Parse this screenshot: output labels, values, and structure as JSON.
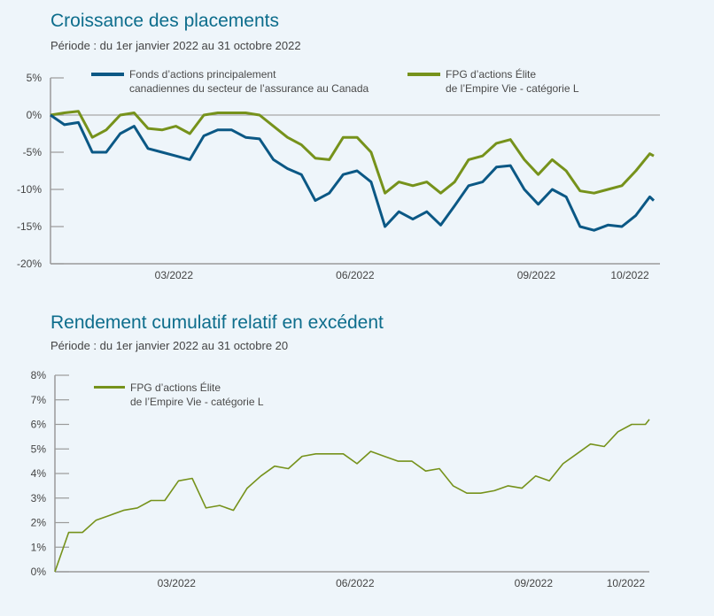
{
  "chart_data": [
    {
      "type": "line",
      "title": "Croissance des placements",
      "subtitle": "Période : du 1er janvier 2022 au 31 octobre 2022",
      "xlabel": "",
      "ylabel": "",
      "ylim": [
        -20,
        5
      ],
      "yticks": [
        "5%",
        "0%",
        "-5%",
        "-10%",
        "-15%",
        "-20%"
      ],
      "xtick_labels": [
        "03/2022",
        "06/2022",
        "09/2022",
        "10/2022"
      ],
      "legend": "top",
      "grid": false,
      "x": [
        "2022-01-01",
        "2022-01-08",
        "2022-01-15",
        "2022-01-22",
        "2022-01-29",
        "2022-02-05",
        "2022-02-12",
        "2022-02-19",
        "2022-02-26",
        "2022-03-05",
        "2022-03-12",
        "2022-03-19",
        "2022-03-26",
        "2022-04-02",
        "2022-04-09",
        "2022-04-16",
        "2022-04-23",
        "2022-04-30",
        "2022-05-07",
        "2022-05-14",
        "2022-05-21",
        "2022-05-28",
        "2022-06-04",
        "2022-06-11",
        "2022-06-18",
        "2022-06-25",
        "2022-07-02",
        "2022-07-09",
        "2022-07-16",
        "2022-07-23",
        "2022-07-30",
        "2022-08-06",
        "2022-08-13",
        "2022-08-20",
        "2022-08-27",
        "2022-09-03",
        "2022-09-10",
        "2022-09-17",
        "2022-09-24",
        "2022-10-01",
        "2022-10-08",
        "2022-10-15",
        "2022-10-22",
        "2022-10-29",
        "2022-10-31"
      ],
      "series": [
        {
          "name": "Fonds d’actions principalement canadiennes du secteur de l’assurance au Canada",
          "name_line1": "Fonds d’actions principalement",
          "name_line2": "canadiennes du secteur de l’assurance au Canada",
          "color": "#0b5885",
          "values": [
            0,
            -1.3,
            -1,
            -5,
            -5,
            -2.5,
            -1.5,
            -4.5,
            -5,
            -5.5,
            -6,
            -2.8,
            -2,
            -2,
            -3,
            -3.2,
            -6,
            -7.2,
            -8,
            -11.5,
            -10.5,
            -8,
            -7.5,
            -9,
            -15,
            -13,
            -14,
            -13,
            -14.8,
            -12.2,
            -9.5,
            -9,
            -7,
            -6.8,
            -10,
            -12,
            -10,
            -11,
            -15,
            -15.5,
            -14.8,
            -15,
            -13.5,
            -11,
            -11.5
          ]
        },
        {
          "name": "FPG d’actions Élite de l’Empire Vie - catégorie L",
          "name_line1": "FPG d’actions Élite",
          "name_line2": "de l’Empire Vie - catégorie L",
          "color": "#76921b",
          "values": [
            0,
            0.3,
            0.5,
            -3,
            -2,
            0,
            0.3,
            -1.8,
            -2,
            -1.5,
            -2.5,
            0,
            0.3,
            0.3,
            0.3,
            0,
            -1.5,
            -3,
            -4,
            -5.8,
            -6,
            -3,
            -3,
            -5,
            -10.5,
            -9,
            -9.5,
            -9,
            -10.5,
            -9,
            -6,
            -5.5,
            -3.8,
            -3.3,
            -6,
            -8,
            -6,
            -7.5,
            -10.2,
            -10.5,
            -10,
            -9.5,
            -7.5,
            -5.2,
            -5.5
          ]
        }
      ]
    },
    {
      "type": "line",
      "title": "Rendement cumulatif relatif en excédent",
      "subtitle": "Période : du 1er janvier 2022 au 31 octobre 20",
      "xlabel": "",
      "ylabel": "",
      "ylim": [
        0,
        8
      ],
      "yticks": [
        "8%",
        "7%",
        "6%",
        "5%",
        "4%",
        "3%",
        "2%",
        "1%",
        "0%"
      ],
      "xtick_labels": [
        "03/2022",
        "06/2022",
        "09/2022",
        "10/2022"
      ],
      "legend": "top-left",
      "grid": false,
      "x": [
        "2022-01-01",
        "2022-01-08",
        "2022-01-15",
        "2022-01-22",
        "2022-01-29",
        "2022-02-05",
        "2022-02-12",
        "2022-02-19",
        "2022-02-26",
        "2022-03-05",
        "2022-03-12",
        "2022-03-19",
        "2022-03-26",
        "2022-04-02",
        "2022-04-09",
        "2022-04-16",
        "2022-04-23",
        "2022-04-30",
        "2022-05-07",
        "2022-05-14",
        "2022-05-21",
        "2022-05-28",
        "2022-06-04",
        "2022-06-11",
        "2022-06-18",
        "2022-06-25",
        "2022-07-02",
        "2022-07-09",
        "2022-07-16",
        "2022-07-23",
        "2022-07-30",
        "2022-08-06",
        "2022-08-13",
        "2022-08-20",
        "2022-08-27",
        "2022-09-03",
        "2022-09-10",
        "2022-09-17",
        "2022-09-24",
        "2022-10-01",
        "2022-10-08",
        "2022-10-15",
        "2022-10-22",
        "2022-10-29",
        "2022-10-31"
      ],
      "series": [
        {
          "name": "FPG d’actions Élite de l’Empire Vie - catégorie L",
          "name_line1": "FPG d’actions Élite",
          "name_line2": "de l’Empire Vie - catégorie L",
          "color": "#76921b",
          "values": [
            0,
            1.6,
            1.6,
            2.1,
            2.3,
            2.5,
            2.6,
            2.9,
            2.9,
            3.7,
            3.8,
            2.6,
            2.7,
            2.5,
            3.4,
            3.9,
            4.3,
            4.2,
            4.7,
            4.8,
            4.8,
            4.8,
            4.4,
            4.9,
            4.7,
            4.5,
            4.5,
            4.1,
            4.2,
            3.5,
            3.2,
            3.2,
            3.3,
            3.5,
            3.4,
            3.9,
            3.7,
            4.4,
            4.8,
            5.2,
            5.1,
            5.7,
            6.0,
            6.0,
            6.2
          ]
        }
      ]
    }
  ]
}
